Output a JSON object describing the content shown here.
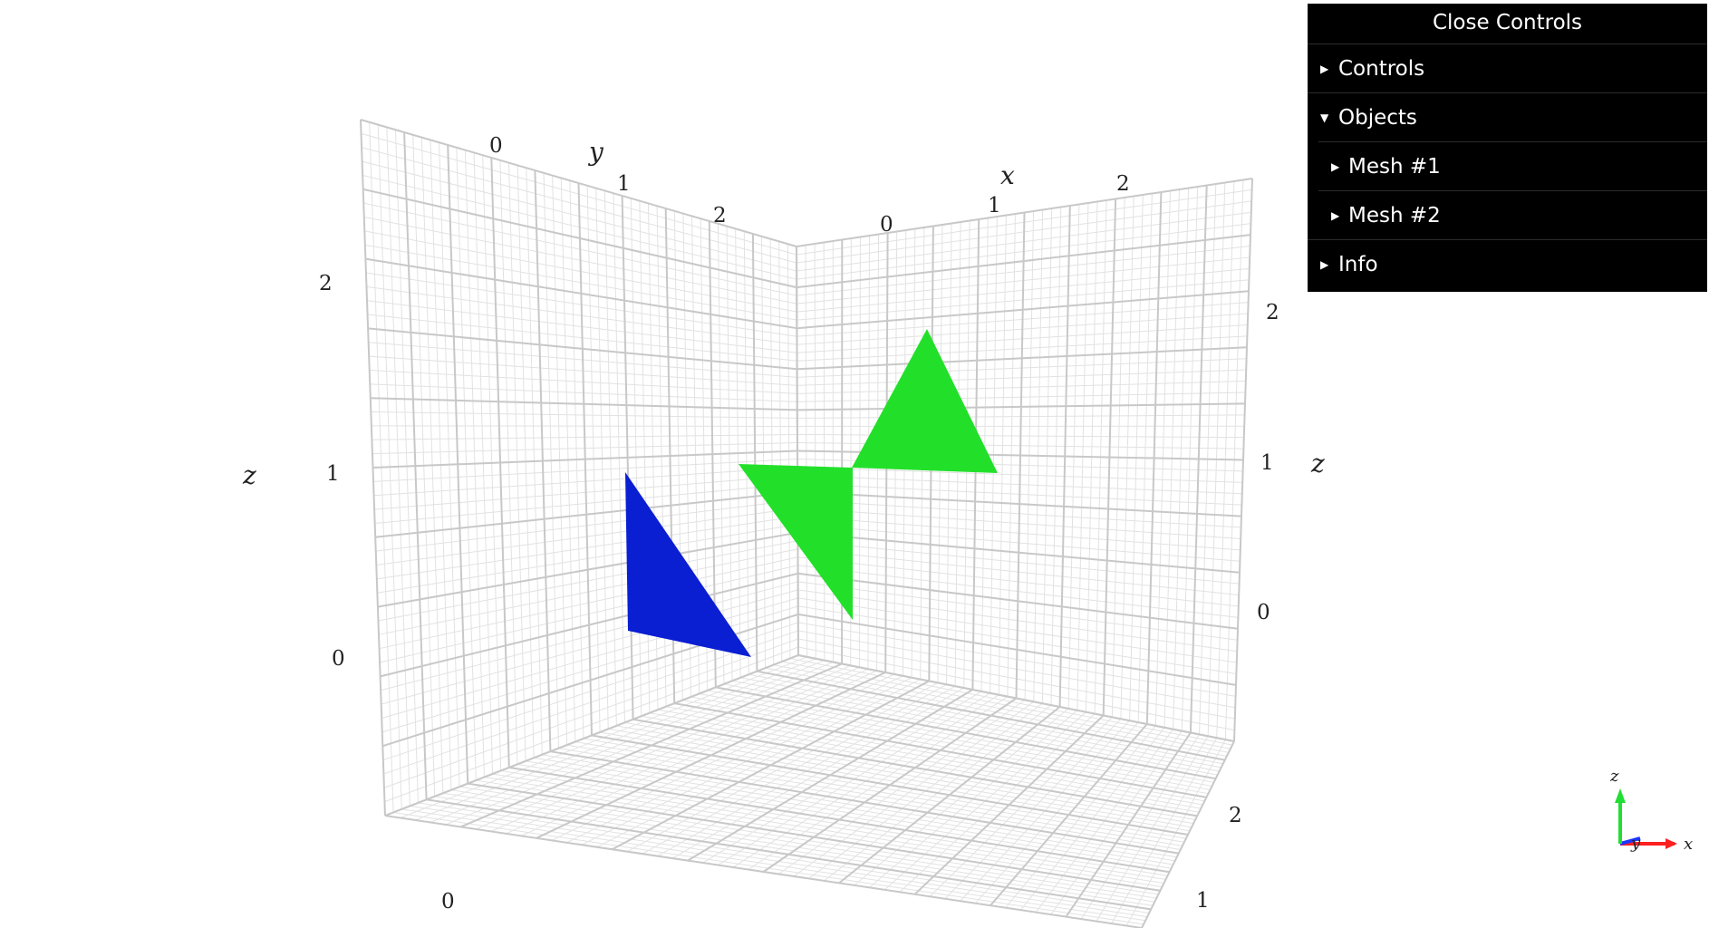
{
  "panel": {
    "close_label": "Close Controls",
    "folders": [
      {
        "label": "Controls",
        "state": "collapsed"
      },
      {
        "label": "Objects",
        "state": "expanded"
      },
      {
        "label": "Info",
        "state": "collapsed"
      }
    ],
    "objects": [
      {
        "label": "Mesh #1"
      },
      {
        "label": "Mesh #2"
      }
    ]
  },
  "axes": {
    "labels": {
      "x": "x",
      "y": "y",
      "z": "z"
    },
    "ticks": [
      "0",
      "1",
      "2"
    ]
  },
  "meshes": [
    {
      "name": "Mesh #1",
      "color": "#0a1ed2"
    },
    {
      "name": "Mesh #2",
      "color": "#22e02a"
    }
  ],
  "gizmo": {
    "x": "x",
    "y": "y",
    "z": "z",
    "colors": {
      "x": "#ff2020",
      "y": "#1a35ff",
      "z": "#22dd33"
    }
  },
  "colors": {
    "grid_major": "#c8c8c8",
    "grid_minor": "#e2e2e2",
    "panel_bg": "#000000"
  }
}
